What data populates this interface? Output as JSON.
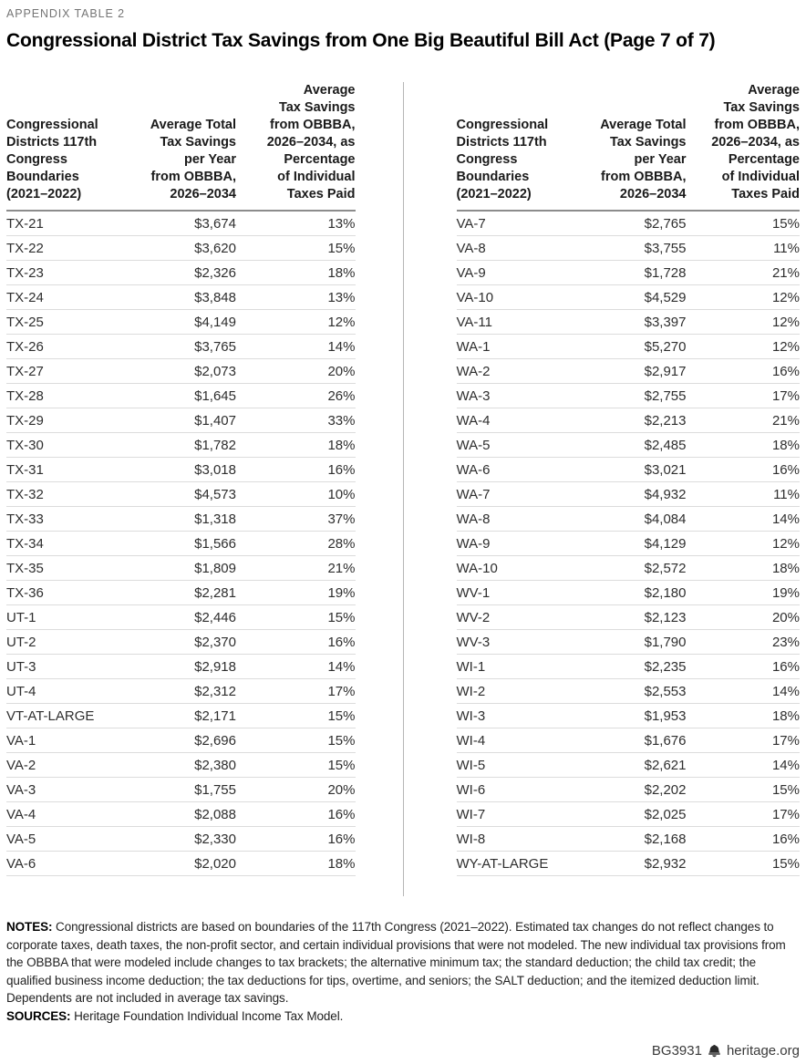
{
  "page": {
    "eyebrow": "APPENDIX TABLE 2",
    "title": "Congressional District Tax Savings from One Big Beautiful Bill Act (Page 7 of 7)"
  },
  "columns": {
    "district": "Congressional\nDistricts 117th\nCongress\nBoundaries\n(2021–2022)",
    "savings": "Average Total\nTax Savings\nper Year\nfrom OBBBA,\n2026–2034",
    "pct": "Average\nTax Savings\nfrom OBBBA,\n2026–2034, as\nPercentage\nof Individual\nTaxes Paid"
  },
  "tables": [
    {
      "rows": [
        [
          "TX-21",
          "$3,674",
          "13%"
        ],
        [
          "TX-22",
          "$3,620",
          "15%"
        ],
        [
          "TX-23",
          "$2,326",
          "18%"
        ],
        [
          "TX-24",
          "$3,848",
          "13%"
        ],
        [
          "TX-25",
          "$4,149",
          "12%"
        ],
        [
          "TX-26",
          "$3,765",
          "14%"
        ],
        [
          "TX-27",
          "$2,073",
          "20%"
        ],
        [
          "TX-28",
          "$1,645",
          "26%"
        ],
        [
          "TX-29",
          "$1,407",
          "33%"
        ],
        [
          "TX-30",
          "$1,782",
          "18%"
        ],
        [
          "TX-31",
          "$3,018",
          "16%"
        ],
        [
          "TX-32",
          "$4,573",
          "10%"
        ],
        [
          "TX-33",
          "$1,318",
          "37%"
        ],
        [
          "TX-34",
          "$1,566",
          "28%"
        ],
        [
          "TX-35",
          "$1,809",
          "21%"
        ],
        [
          "TX-36",
          "$2,281",
          "19%"
        ],
        [
          "UT-1",
          "$2,446",
          "15%"
        ],
        [
          "UT-2",
          "$2,370",
          "16%"
        ],
        [
          "UT-3",
          "$2,918",
          "14%"
        ],
        [
          "UT-4",
          "$2,312",
          "17%"
        ],
        [
          "VT-AT-LARGE",
          "$2,171",
          "15%"
        ],
        [
          "VA-1",
          "$2,696",
          "15%"
        ],
        [
          "VA-2",
          "$2,380",
          "15%"
        ],
        [
          "VA-3",
          "$1,755",
          "20%"
        ],
        [
          "VA-4",
          "$2,088",
          "16%"
        ],
        [
          "VA-5",
          "$2,330",
          "16%"
        ],
        [
          "VA-6",
          "$2,020",
          "18%"
        ]
      ]
    },
    {
      "rows": [
        [
          "VA-7",
          "$2,765",
          "15%"
        ],
        [
          "VA-8",
          "$3,755",
          "11%"
        ],
        [
          "VA-9",
          "$1,728",
          "21%"
        ],
        [
          "VA-10",
          "$4,529",
          "12%"
        ],
        [
          "VA-11",
          "$3,397",
          "12%"
        ],
        [
          "WA-1",
          "$5,270",
          "12%"
        ],
        [
          "WA-2",
          "$2,917",
          "16%"
        ],
        [
          "WA-3",
          "$2,755",
          "17%"
        ],
        [
          "WA-4",
          "$2,213",
          "21%"
        ],
        [
          "WA-5",
          "$2,485",
          "18%"
        ],
        [
          "WA-6",
          "$3,021",
          "16%"
        ],
        [
          "WA-7",
          "$4,932",
          "11%"
        ],
        [
          "WA-8",
          "$4,084",
          "14%"
        ],
        [
          "WA-9",
          "$4,129",
          "12%"
        ],
        [
          "WA-10",
          "$2,572",
          "18%"
        ],
        [
          "WV-1",
          "$2,180",
          "19%"
        ],
        [
          "WV-2",
          "$2,123",
          "20%"
        ],
        [
          "WV-3",
          "$1,790",
          "23%"
        ],
        [
          "WI-1",
          "$2,235",
          "16%"
        ],
        [
          "WI-2",
          "$2,553",
          "14%"
        ],
        [
          "WI-3",
          "$1,953",
          "18%"
        ],
        [
          "WI-4",
          "$1,676",
          "17%"
        ],
        [
          "WI-5",
          "$2,621",
          "14%"
        ],
        [
          "WI-6",
          "$2,202",
          "15%"
        ],
        [
          "WI-7",
          "$2,025",
          "17%"
        ],
        [
          "WI-8",
          "$2,168",
          "16%"
        ],
        [
          "WY-AT-LARGE",
          "$2,932",
          "15%"
        ]
      ]
    }
  ],
  "notes": {
    "label": "NOTES:",
    "text": " Congressional districts are based on boundaries of the 117th Congress (2021–2022). Estimated tax changes do not reflect changes to corporate taxes, death taxes, the non-profit sector, and certain individual provisions that were not modeled. The new individual tax provisions from the OBBBA that were modeled include changes to tax brackets; the alternative minimum tax; the standard deduction; the child tax credit; the qualified business income deduction; the tax deductions for tips, overtime, and seniors; the SALT deduction; and the itemized deduction limit. Dependents are not included in average tax savings."
  },
  "sources": {
    "label": "SOURCES:",
    "text": " Heritage Foundation Individual Income Tax Model."
  },
  "footer": {
    "doc_id": "BG3931",
    "site": "heritage.org",
    "bell_icon": "heritage-liberty-bell-icon"
  },
  "colors": {
    "eyebrow_gray": "#757575",
    "header_rule": "#8c8c8c",
    "row_rule": "#dcdcdc",
    "table_divider": "#b5b5b5",
    "text": "#2e2e2e"
  }
}
